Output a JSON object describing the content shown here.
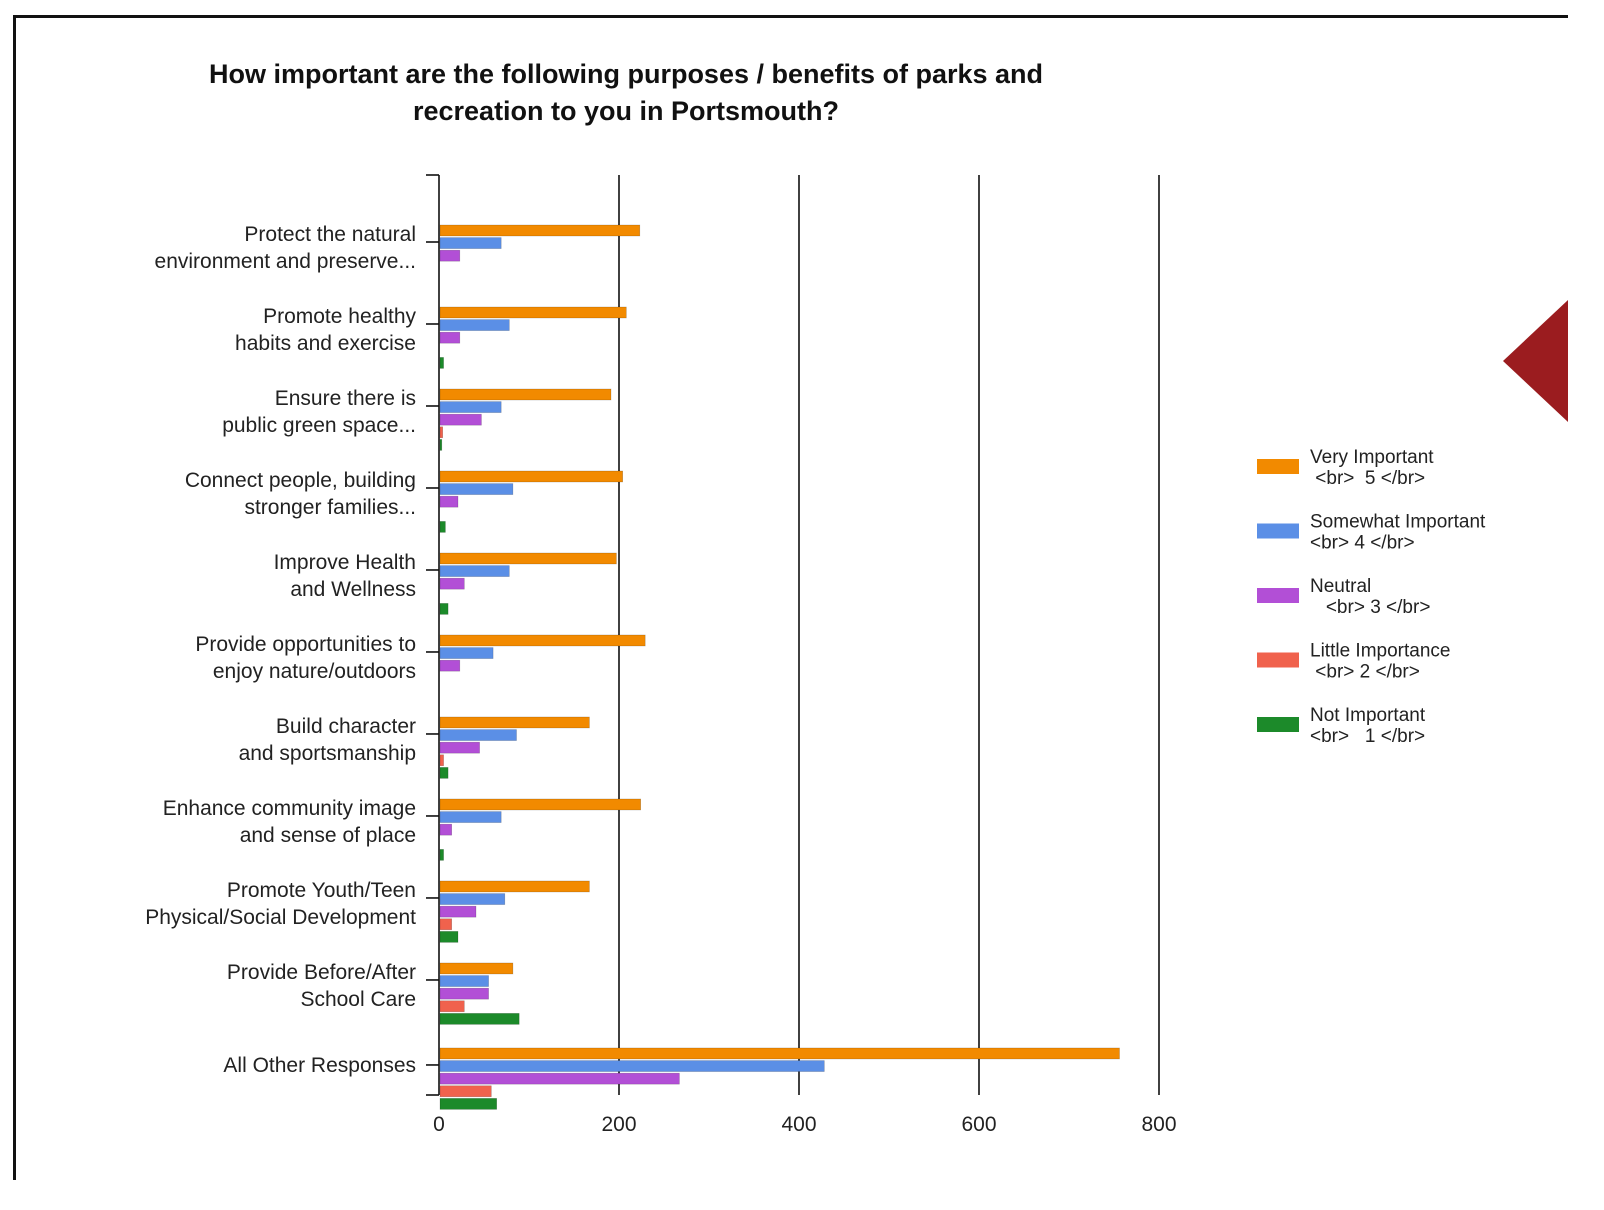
{
  "chart_data": {
    "type": "bar",
    "orientation": "horizontal",
    "title": "How important are the following purposes / benefits of parks and recreation to you in Portsmouth?",
    "title_lines": [
      "How important are the following purposes / benefits of parks and",
      "recreation to you in Portsmouth?"
    ],
    "xlim": [
      0,
      800
    ],
    "x_ticks": [
      0,
      200,
      400,
      600,
      800
    ],
    "grid": "vertical lines at major ticks",
    "legend_position": "right",
    "categories": [
      [
        "Protect the natural",
        "environment and preserve..."
      ],
      [
        "Promote healthy",
        "habits and exercise"
      ],
      [
        "Ensure there is",
        "public green space..."
      ],
      [
        "Connect people, building",
        "stronger families..."
      ],
      [
        "Improve Health",
        "and Wellness"
      ],
      [
        "Provide opportunities to",
        "enjoy nature/outdoors"
      ],
      [
        "Build character",
        "and sportsmanship"
      ],
      [
        "Enhance community image",
        "and sense of place"
      ],
      [
        "Promote Youth/Teen",
        "Physical/Social Development"
      ],
      [
        "Provide Before/After",
        "School Care"
      ],
      [
        "All Other Responses"
      ]
    ],
    "series": [
      {
        "name": "Very Important <br> 5 </br>",
        "legend_lines": [
          "Very Important",
          " <br>  5 </br>"
        ],
        "color": "#f28a00",
        "values": [
          222,
          207,
          190,
          203,
          196,
          228,
          166,
          223,
          166,
          81,
          755
        ]
      },
      {
        "name": "Somewhat Important <br> 4 </br>",
        "legend_lines": [
          "Somewhat Important",
          "<br> 4 </br>"
        ],
        "color": "#5b8fe6",
        "values": [
          68,
          77,
          68,
          81,
          77,
          59,
          85,
          68,
          72,
          54,
          427
        ]
      },
      {
        "name": "Neutral <br> 3 </br>",
        "legend_lines": [
          "Neutral",
          "   <br> 3 </br>"
        ],
        "color": "#b24fd6",
        "values": [
          22,
          22,
          46,
          20,
          27,
          22,
          44,
          13,
          40,
          54,
          266
        ]
      },
      {
        "name": "Little Importance <br> 2 </br>",
        "legend_lines": [
          "Little Importance",
          " <br> 2 </br>"
        ],
        "color": "#f0624d",
        "values": [
          0,
          0,
          3,
          0,
          0,
          0,
          4,
          0,
          13,
          27,
          57
        ]
      },
      {
        "name": "Not Important <br> 1 </br>",
        "legend_lines": [
          "Not Important",
          "<br>   1 </br>"
        ],
        "color": "#1c8a2a",
        "values": [
          0,
          4,
          2,
          6,
          9,
          0,
          9,
          4,
          20,
          88,
          63
        ]
      }
    ]
  },
  "decoration": {
    "triangle_color": "#9b1c1f"
  }
}
